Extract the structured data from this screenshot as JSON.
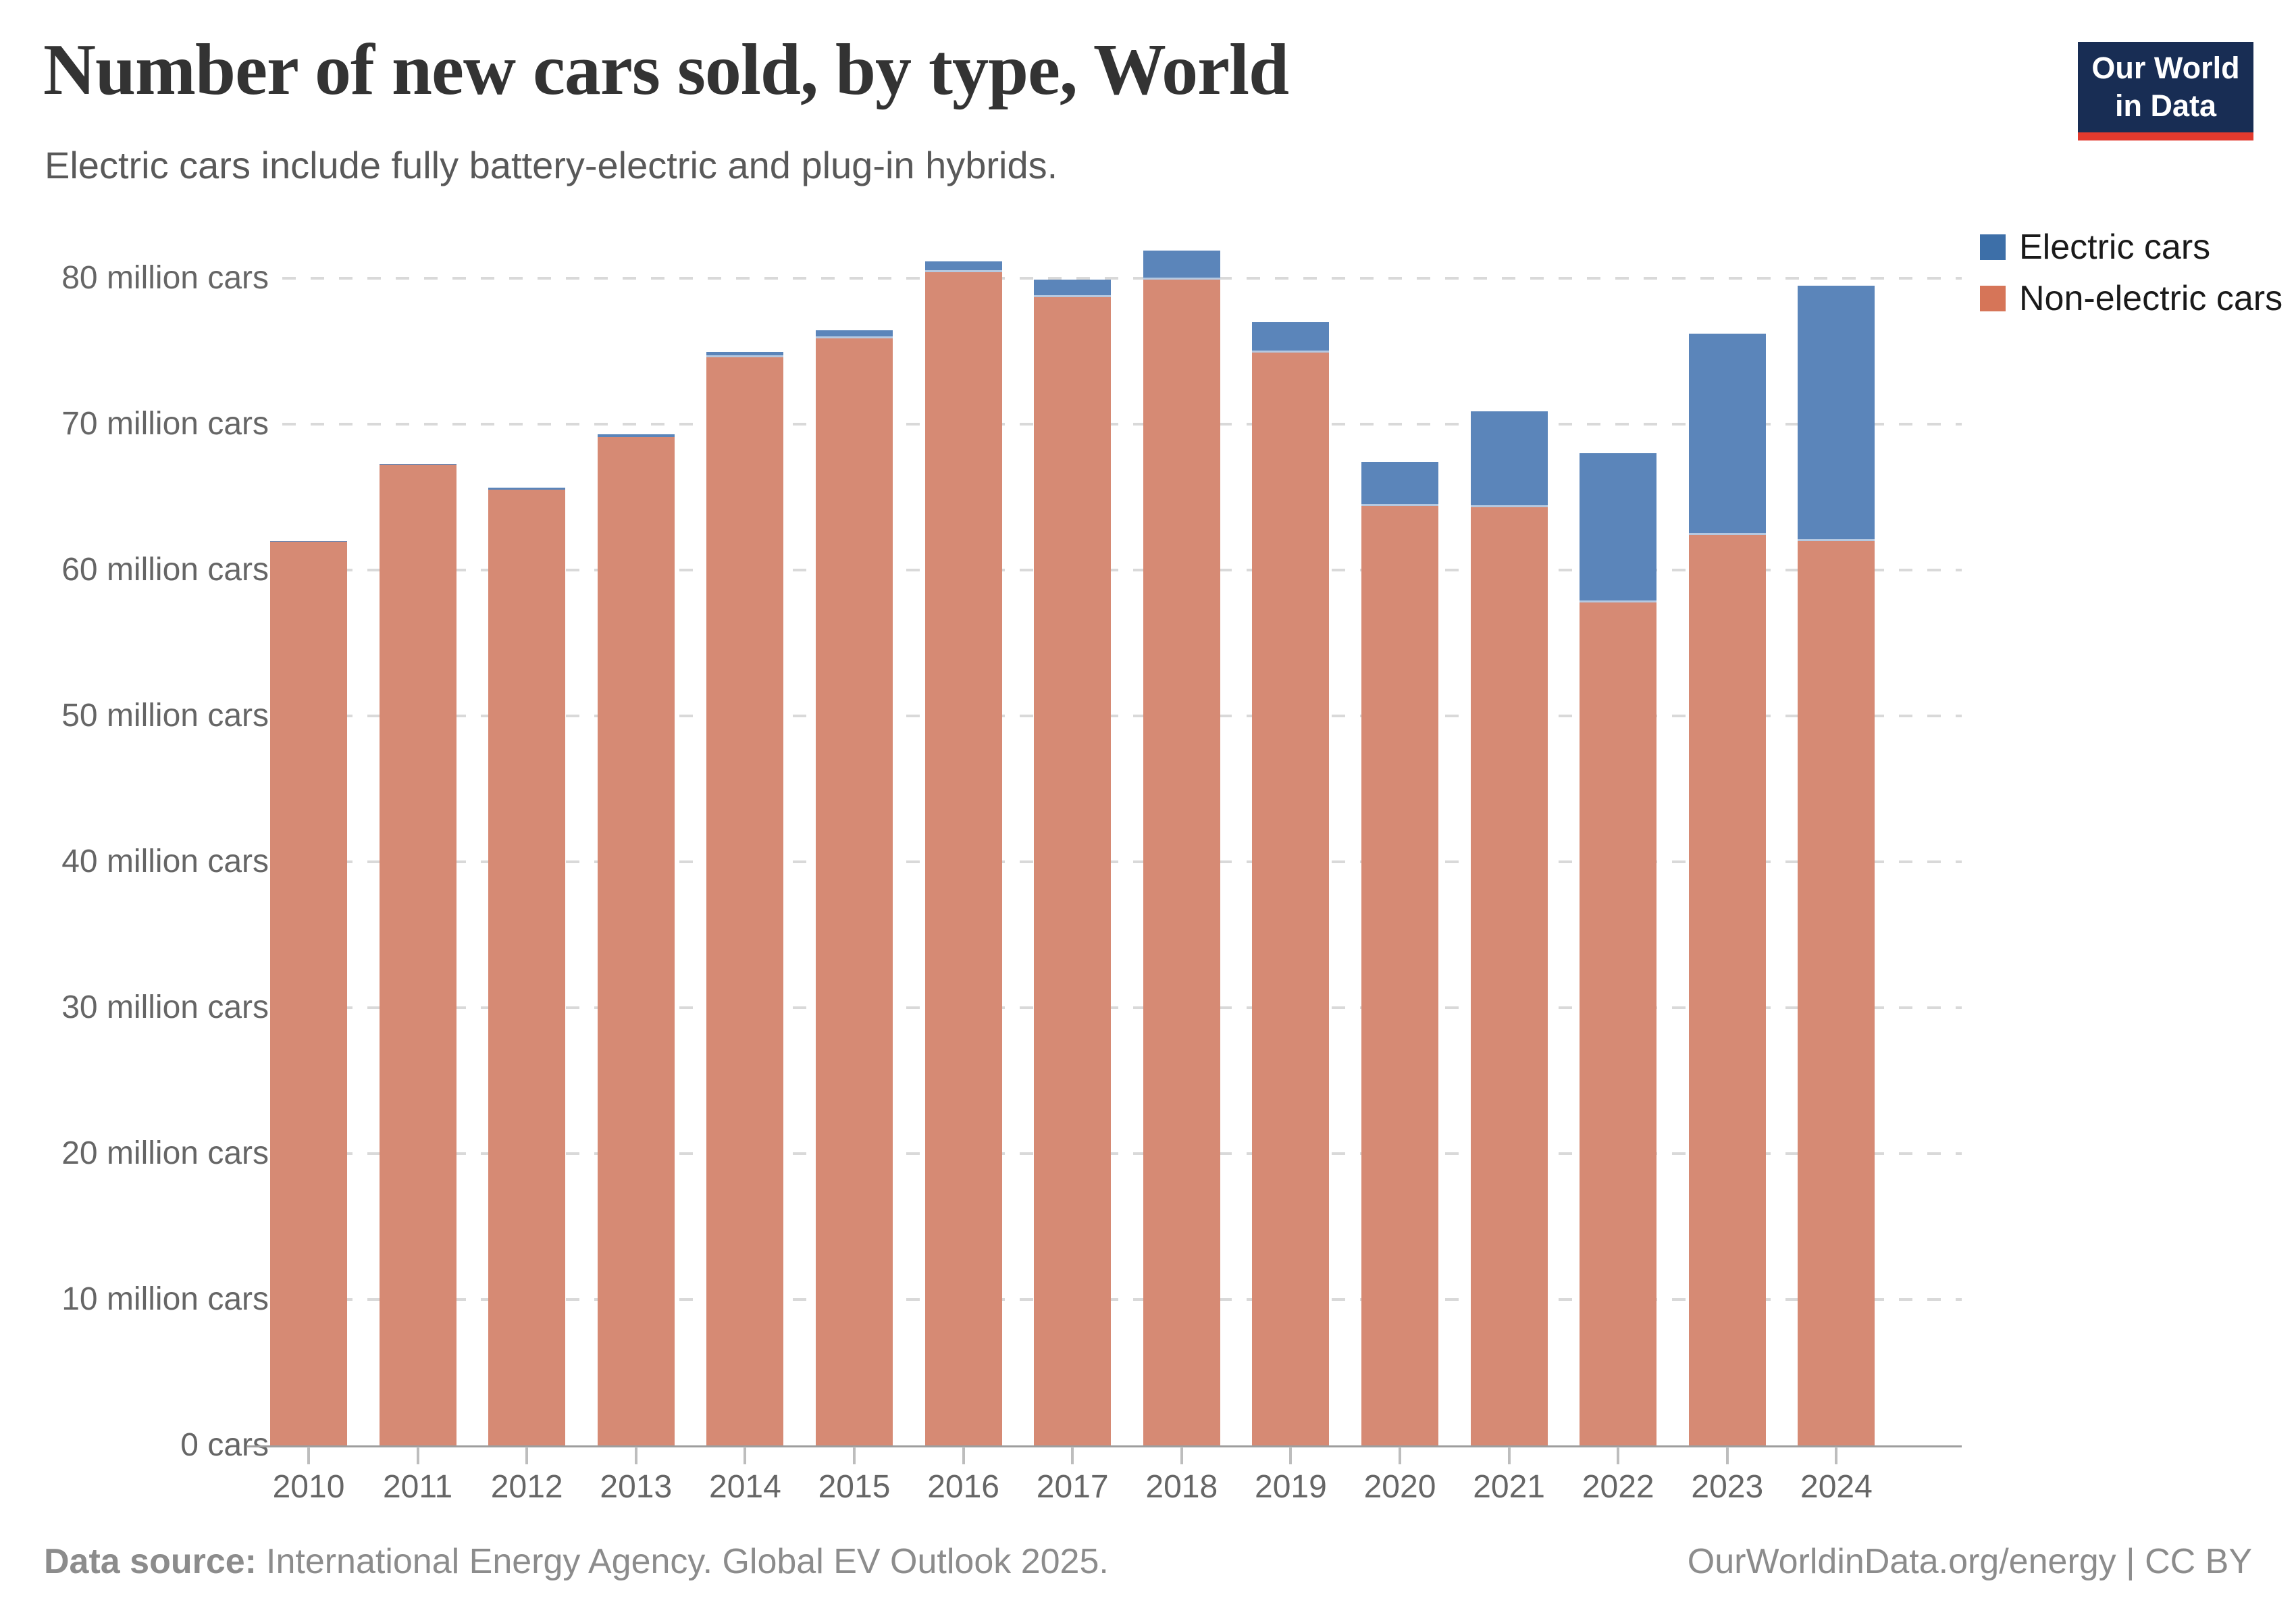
{
  "header": {
    "title": "Number of new cars sold, by type, World",
    "subtitle": "Electric cars include fully battery-electric and plug-in hybrids."
  },
  "logo": {
    "line1": "Our World",
    "line2": "in Data",
    "bg_color": "#182d54",
    "accent_color": "#e23a2e"
  },
  "legend": {
    "items": [
      {
        "label": "Electric cars",
        "color": "#3D6FA8"
      },
      {
        "label": "Non-electric cars",
        "color": "#D67558"
      }
    ]
  },
  "footer": {
    "source_label": "Data source:",
    "source_text": "International Energy Agency. Global EV Outlook 2025.",
    "right_text": "OurWorldinData.org/energy | CC BY"
  },
  "chart_data": {
    "type": "bar",
    "stacked": true,
    "title": "Number of new cars sold, by type, World",
    "subtitle": "Electric cars include fully battery-electric and plug-in hybrids.",
    "unit": "million cars",
    "categories": [
      "2010",
      "2011",
      "2012",
      "2013",
      "2014",
      "2015",
      "2016",
      "2017",
      "2018",
      "2019",
      "2020",
      "2021",
      "2022",
      "2023",
      "2024"
    ],
    "series": [
      {
        "name": "Non-electric cars",
        "legend_color": "#D67558",
        "fill": "#D68A74",
        "values": [
          62.0,
          67.2,
          65.5,
          69.1,
          74.6,
          75.9,
          80.4,
          78.7,
          79.9,
          74.9,
          64.4,
          64.3,
          57.8,
          62.4,
          62.0
        ]
      },
      {
        "name": "Electric cars",
        "legend_color": "#3D6FA8",
        "fill": "#5B85BA",
        "values": [
          0.01,
          0.07,
          0.13,
          0.2,
          0.35,
          0.55,
          0.75,
          1.2,
          2.0,
          2.1,
          3.0,
          6.6,
          10.2,
          13.8,
          17.5
        ]
      }
    ],
    "totals": [
      62.0,
      67.3,
      65.6,
      69.3,
      75.0,
      76.5,
      81.2,
      79.9,
      81.9,
      77.0,
      67.4,
      70.9,
      68.0,
      76.2,
      79.5
    ],
    "ylim": [
      0,
      80
    ],
    "yticks": [
      {
        "v": 0,
        "label": "0 cars"
      },
      {
        "v": 10,
        "label": "10 million cars"
      },
      {
        "v": 20,
        "label": "20 million cars"
      },
      {
        "v": 30,
        "label": "30 million cars"
      },
      {
        "v": 40,
        "label": "40 million cars"
      },
      {
        "v": 50,
        "label": "50 million cars"
      },
      {
        "v": 60,
        "label": "60 million cars"
      },
      {
        "v": 70,
        "label": "70 million cars"
      },
      {
        "v": 80,
        "label": "80 million cars"
      },
      {
        "v": 80,
        "label": "80 million cars"
      }
    ],
    "grid": "horizontal-dashed",
    "legend_position": "top-right"
  }
}
